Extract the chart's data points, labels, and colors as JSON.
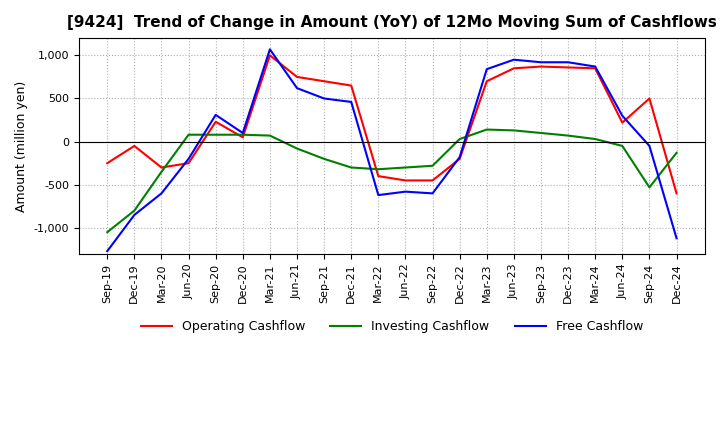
{
  "title": "[9424]  Trend of Change in Amount (YoY) of 12Mo Moving Sum of Cashflows",
  "ylabel": "Amount (million yen)",
  "ylim": [
    -1300,
    1200
  ],
  "yticks": [
    -1000,
    -500,
    0,
    500,
    1000
  ],
  "x_labels": [
    "Sep-19",
    "Dec-19",
    "Mar-20",
    "Jun-20",
    "Sep-20",
    "Dec-20",
    "Mar-21",
    "Jun-21",
    "Sep-21",
    "Dec-21",
    "Mar-22",
    "Jun-22",
    "Sep-22",
    "Dec-22",
    "Mar-23",
    "Jun-23",
    "Sep-23",
    "Dec-23",
    "Mar-24",
    "Jun-24",
    "Sep-24",
    "Dec-24"
  ],
  "operating": [
    -250,
    -50,
    -300,
    -250,
    230,
    50,
    1000,
    750,
    700,
    650,
    -400,
    -450,
    -450,
    -200,
    700,
    850,
    870,
    860,
    850,
    220,
    500,
    -600
  ],
  "investing": [
    -1050,
    -800,
    -350,
    80,
    80,
    80,
    70,
    -80,
    -200,
    -300,
    -320,
    -300,
    -280,
    30,
    140,
    130,
    100,
    70,
    30,
    -50,
    -530,
    -130
  ],
  "free": [
    -1270,
    -850,
    -600,
    -200,
    310,
    100,
    1070,
    620,
    500,
    460,
    -620,
    -580,
    -600,
    -180,
    840,
    950,
    920,
    920,
    870,
    300,
    -50,
    -1120
  ],
  "op_color": "#ff0000",
  "inv_color": "#008000",
  "free_color": "#0000ff",
  "background_color": "#ffffff",
  "grid_color": "#b0b0b0",
  "title_fontsize": 11,
  "label_fontsize": 9,
  "tick_fontsize": 8,
  "legend_fontsize": 9
}
